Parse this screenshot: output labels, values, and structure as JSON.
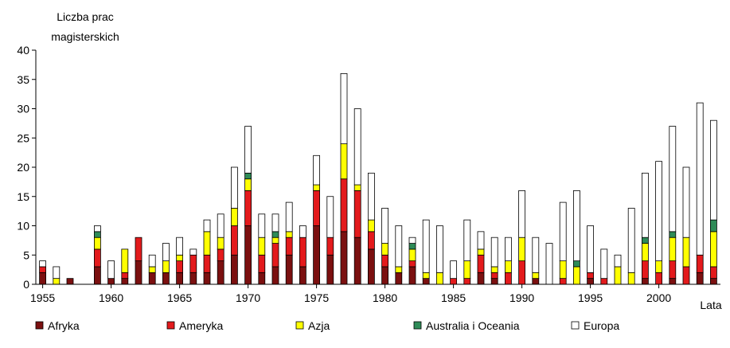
{
  "chart_data": {
    "type": "stacked_bar",
    "ylabel": [
      "Liczba prac",
      "magisterskich"
    ],
    "xlabel": "Lata",
    "categories": [
      "1955",
      null,
      null,
      null,
      null,
      "1960",
      null,
      null,
      null,
      null,
      "1965",
      null,
      null,
      null,
      null,
      "1970",
      null,
      null,
      null,
      null,
      "1975",
      null,
      null,
      null,
      null,
      "1980",
      null,
      null,
      null,
      null,
      "1985",
      null,
      null,
      null,
      null,
      "1990",
      null,
      null,
      null,
      null,
      "1995",
      null,
      null,
      null,
      null,
      "2000",
      null,
      null,
      null,
      null
    ],
    "series": [
      {
        "name": "Afryka",
        "color": "#7b1010",
        "values": [
          2,
          0,
          1,
          0,
          3,
          1,
          1,
          4,
          2,
          2,
          2,
          2,
          2,
          4,
          5,
          10,
          2,
          3,
          5,
          3,
          10,
          5,
          9,
          8,
          6,
          3,
          2,
          3,
          1,
          0,
          0,
          0,
          2,
          1,
          0,
          0,
          1,
          0,
          0,
          0,
          1,
          0,
          0,
          0,
          1,
          0,
          1,
          0,
          2,
          1
        ]
      },
      {
        "name": "Ameryka",
        "color": "#e31a1c",
        "values": [
          1,
          0,
          0,
          0,
          3,
          0,
          1,
          4,
          0,
          0,
          2,
          3,
          3,
          2,
          5,
          6,
          3,
          4,
          3,
          5,
          6,
          3,
          9,
          8,
          3,
          2,
          0,
          1,
          0,
          0,
          1,
          1,
          3,
          1,
          2,
          4,
          0,
          0,
          1,
          0,
          1,
          1,
          0,
          0,
          3,
          2,
          3,
          3,
          3,
          2
        ]
      },
      {
        "name": "Azja",
        "color": "#ffff00",
        "values": [
          0,
          1,
          0,
          0,
          2,
          0,
          4,
          0,
          1,
          2,
          1,
          0,
          4,
          2,
          3,
          2,
          3,
          1,
          1,
          0,
          1,
          0,
          6,
          1,
          2,
          2,
          1,
          2,
          1,
          2,
          0,
          3,
          1,
          1,
          2,
          4,
          1,
          0,
          3,
          3,
          0,
          0,
          3,
          2,
          3,
          2,
          4,
          5,
          0,
          6
        ]
      },
      {
        "name": "Australia i Oceania",
        "color": "#2e8b57",
        "values": [
          0,
          0,
          0,
          0,
          1,
          0,
          0,
          0,
          0,
          0,
          0,
          0,
          0,
          0,
          0,
          1,
          0,
          1,
          0,
          0,
          0,
          0,
          0,
          0,
          0,
          0,
          0,
          1,
          0,
          0,
          0,
          0,
          0,
          0,
          0,
          0,
          0,
          0,
          0,
          1,
          0,
          0,
          0,
          0,
          1,
          0,
          1,
          0,
          0,
          2
        ]
      },
      {
        "name": "Europa",
        "color": "#ffffff",
        "values": [
          1,
          2,
          0,
          0,
          1,
          3,
          0,
          0,
          2,
          3,
          3,
          1,
          2,
          4,
          7,
          8,
          4,
          3,
          5,
          2,
          5,
          7,
          12,
          13,
          8,
          6,
          7,
          1,
          9,
          8,
          3,
          7,
          3,
          5,
          4,
          8,
          6,
          7,
          10,
          12,
          8,
          5,
          2,
          11,
          11,
          17,
          18,
          12,
          26,
          17
        ]
      }
    ],
    "ylim": [
      0,
      40
    ],
    "yticks": [
      0,
      5,
      10,
      15,
      20,
      25,
      30,
      35,
      40
    ]
  }
}
